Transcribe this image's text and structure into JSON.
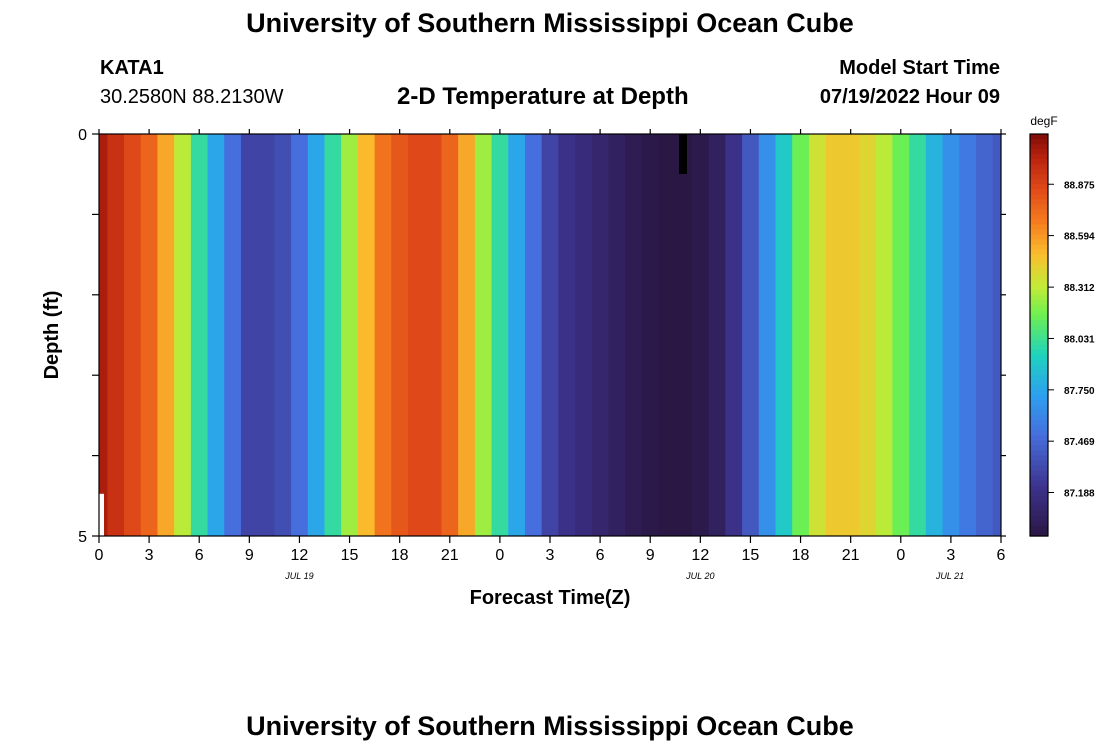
{
  "header": {
    "title": "University of Southern Mississippi Ocean Cube",
    "station_id": "KATA1",
    "station_coords": "30.2580N  88.2130W",
    "plot_title": "2-D Temperature at Depth",
    "model_start_label": "Model Start Time",
    "model_start_value": "07/19/2022 Hour 09"
  },
  "footer": {
    "title": "University of Southern Mississippi Ocean Cube"
  },
  "chart_data": {
    "type": "heatmap",
    "title": "2-D Temperature at Depth",
    "xlabel": "Forecast Time(Z)",
    "ylabel": "Depth (ft)",
    "x_tick_labels": [
      "0",
      "3",
      "6",
      "9",
      "12",
      "15",
      "18",
      "21",
      "0",
      "3",
      "6",
      "9",
      "12",
      "15",
      "18",
      "21",
      "0",
      "3",
      "6"
    ],
    "date_labels": [
      "JUL 19",
      "JUL 20",
      "JUL 21"
    ],
    "y_tick_labels": [
      "0",
      "5"
    ],
    "ylim": [
      0,
      5
    ],
    "colorbar": {
      "unit": "degF",
      "ticks": [
        88.875,
        88.594,
        88.312,
        88.031,
        87.75,
        87.469,
        87.188
      ],
      "range": [
        86.95,
        89.15
      ]
    },
    "x_hours": [
      0,
      1,
      2,
      3,
      4,
      5,
      6,
      7,
      8,
      9,
      10,
      11,
      12,
      13,
      14,
      15,
      16,
      17,
      18,
      19,
      20,
      21,
      22,
      23,
      24,
      25,
      26,
      27,
      28,
      29,
      30,
      31,
      32,
      33,
      34,
      35,
      36,
      37,
      38,
      39,
      40,
      41,
      42,
      43,
      44,
      45,
      46,
      47,
      48,
      49,
      50,
      51,
      52,
      53,
      54
    ],
    "temperature_degF": [
      89.05,
      88.95,
      88.85,
      88.75,
      88.55,
      88.3,
      88.0,
      87.75,
      87.5,
      87.3,
      87.3,
      87.35,
      87.5,
      87.75,
      88.0,
      88.25,
      88.5,
      88.7,
      88.8,
      88.85,
      88.85,
      88.75,
      88.55,
      88.25,
      88.0,
      87.75,
      87.5,
      87.3,
      87.2,
      87.15,
      87.1,
      87.05,
      87.0,
      86.97,
      86.95,
      86.95,
      86.98,
      87.05,
      87.2,
      87.4,
      87.65,
      87.9,
      88.15,
      88.35,
      88.45,
      88.45,
      88.4,
      88.3,
      88.15,
      88.0,
      87.8,
      87.65,
      87.55,
      87.45,
      87.4
    ]
  }
}
